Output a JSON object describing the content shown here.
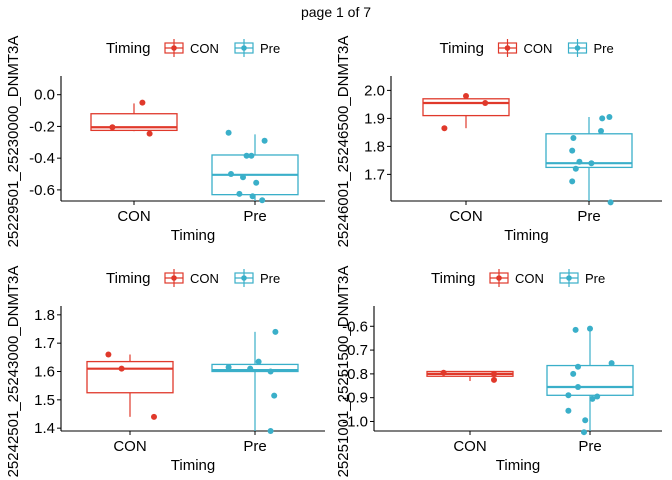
{
  "page_label": "page 1 of 7",
  "colors": {
    "CON": "#e0392b",
    "Pre": "#3aafc9",
    "axis": "#000000"
  },
  "chart_data": [
    {
      "type": "box",
      "xlabel": "Timing",
      "ylabel": "25229501_25230000_DNMT3A",
      "categories": [
        "CON",
        "Pre"
      ],
      "legend": {
        "title": "Timing",
        "entries": [
          "CON",
          "Pre"
        ],
        "position": "top"
      },
      "ylim": [
        -0.67,
        0.08
      ],
      "yticks": [
        0.0,
        -0.2,
        -0.4,
        -0.6
      ],
      "ytick_labels": [
        "0.0",
        "-0.2",
        "-0.4",
        "-0.6"
      ],
      "boxes": [
        {
          "name": "CON",
          "whisker_low": -0.23,
          "q1": -0.225,
          "median": -0.205,
          "q3": -0.12,
          "whisker_high": -0.055
        },
        {
          "name": "Pre",
          "whisker_low": -0.68,
          "q1": -0.63,
          "median": -0.505,
          "q3": -0.38,
          "whisker_high": -0.25
        }
      ],
      "points": [
        {
          "group": "CON",
          "offset": 0.07,
          "y": -0.05
        },
        {
          "group": "CON",
          "offset": -0.18,
          "y": -0.205
        },
        {
          "group": "CON",
          "offset": 0.13,
          "y": -0.245
        },
        {
          "group": "Pre",
          "offset": -0.22,
          "y": -0.24
        },
        {
          "group": "Pre",
          "offset": 0.08,
          "y": -0.29
        },
        {
          "group": "Pre",
          "offset": -0.07,
          "y": -0.385
        },
        {
          "group": "Pre",
          "offset": -0.03,
          "y": -0.385
        },
        {
          "group": "Pre",
          "offset": -0.2,
          "y": -0.5
        },
        {
          "group": "Pre",
          "offset": -0.1,
          "y": -0.52
        },
        {
          "group": "Pre",
          "offset": 0.01,
          "y": -0.555
        },
        {
          "group": "Pre",
          "offset": -0.13,
          "y": -0.625
        },
        {
          "group": "Pre",
          "offset": -0.02,
          "y": -0.64
        },
        {
          "group": "Pre",
          "offset": 0.06,
          "y": -0.665
        }
      ]
    },
    {
      "type": "box",
      "xlabel": "Timing",
      "ylabel": "25246001_25246500_DNMT3A",
      "categories": [
        "CON",
        "Pre"
      ],
      "legend": {
        "title": "Timing",
        "entries": [
          "CON",
          "Pre"
        ],
        "position": "top"
      },
      "ylim": [
        1.605,
        2.03
      ],
      "yticks": [
        2.0,
        1.9,
        1.8,
        1.7
      ],
      "ytick_labels": [
        "2.0",
        "1.9",
        "1.8",
        "1.7"
      ],
      "boxes": [
        {
          "name": "CON",
          "whisker_low": 1.865,
          "q1": 1.91,
          "median": 1.955,
          "q3": 1.97,
          "whisker_high": 1.98
        },
        {
          "name": "Pre",
          "whisker_low": 1.6,
          "q1": 1.725,
          "median": 1.74,
          "q3": 1.845,
          "whisker_high": 1.905
        }
      ],
      "points": [
        {
          "group": "CON",
          "offset": 0.0,
          "y": 1.98
        },
        {
          "group": "CON",
          "offset": -0.18,
          "y": 1.865
        },
        {
          "group": "CON",
          "offset": 0.16,
          "y": 1.955
        },
        {
          "group": "Pre",
          "offset": 0.11,
          "y": 1.9
        },
        {
          "group": "Pre",
          "offset": 0.17,
          "y": 1.905
        },
        {
          "group": "Pre",
          "offset": 0.1,
          "y": 1.855
        },
        {
          "group": "Pre",
          "offset": -0.13,
          "y": 1.83
        },
        {
          "group": "Pre",
          "offset": -0.14,
          "y": 1.785
        },
        {
          "group": "Pre",
          "offset": -0.08,
          "y": 1.745
        },
        {
          "group": "Pre",
          "offset": 0.02,
          "y": 1.74
        },
        {
          "group": "Pre",
          "offset": -0.11,
          "y": 1.72
        },
        {
          "group": "Pre",
          "offset": -0.14,
          "y": 1.675
        },
        {
          "group": "Pre",
          "offset": 0.18,
          "y": 1.6
        }
      ]
    },
    {
      "type": "box",
      "xlabel": "Timing",
      "ylabel": "25242501_25243000_DNMT3A",
      "categories": [
        "CON",
        "Pre"
      ],
      "legend": {
        "title": "Timing",
        "entries": [
          "CON",
          "Pre"
        ],
        "position": "top"
      },
      "ylim": [
        1.39,
        1.81
      ],
      "yticks": [
        1.8,
        1.7,
        1.6,
        1.5,
        1.4
      ],
      "ytick_labels": [
        "1.8",
        "1.7",
        "1.6",
        "1.5",
        "1.4"
      ],
      "boxes": [
        {
          "name": "CON",
          "whisker_low": 1.44,
          "q1": 1.525,
          "median": 1.61,
          "q3": 1.635,
          "whisker_high": 1.66
        },
        {
          "name": "Pre",
          "whisker_low": 1.39,
          "q1": 1.6,
          "median": 1.605,
          "q3": 1.625,
          "whisker_high": 1.74
        }
      ],
      "points": [
        {
          "group": "CON",
          "offset": -0.18,
          "y": 1.66
        },
        {
          "group": "CON",
          "offset": -0.07,
          "y": 1.61
        },
        {
          "group": "CON",
          "offset": 0.2,
          "y": 1.44
        },
        {
          "group": "Pre",
          "offset": 0.17,
          "y": 1.74
        },
        {
          "group": "Pre",
          "offset": 0.03,
          "y": 1.635
        },
        {
          "group": "Pre",
          "offset": -0.22,
          "y": 1.615
        },
        {
          "group": "Pre",
          "offset": -0.04,
          "y": 1.61
        },
        {
          "group": "Pre",
          "offset": 0.13,
          "y": 1.6
        },
        {
          "group": "Pre",
          "offset": 0.16,
          "y": 1.515
        },
        {
          "group": "Pre",
          "offset": 0.13,
          "y": 1.39
        }
      ]
    },
    {
      "type": "box",
      "xlabel": "Timing",
      "ylabel": "25251001_25251500_DNMT3A",
      "categories": [
        "CON",
        "Pre"
      ],
      "legend": {
        "title": "Timing",
        "entries": [
          "CON",
          "Pre"
        ],
        "position": "top"
      },
      "ylim": [
        -1.04,
        -0.54
      ],
      "yticks": [
        -0.6,
        -0.7,
        -0.8,
        -0.9,
        -1.0
      ],
      "ytick_labels": [
        "-0.6",
        "-0.7",
        "-0.8",
        "-0.9",
        "-1.0"
      ],
      "boxes": [
        {
          "name": "CON",
          "whisker_low": -0.83,
          "q1": -0.81,
          "median": -0.8,
          "q3": -0.79,
          "whisker_high": -0.79
        },
        {
          "name": "Pre",
          "whisker_low": -1.045,
          "q1": -0.89,
          "median": -0.855,
          "q3": -0.765,
          "whisker_high": -0.615
        }
      ],
      "points": [
        {
          "group": "CON",
          "offset": -0.22,
          "y": -0.795
        },
        {
          "group": "CON",
          "offset": 0.2,
          "y": -0.8
        },
        {
          "group": "CON",
          "offset": 0.2,
          "y": -0.825
        },
        {
          "group": "Pre",
          "offset": -0.12,
          "y": -0.615
        },
        {
          "group": "Pre",
          "offset": 0.0,
          "y": -0.61
        },
        {
          "group": "Pre",
          "offset": 0.18,
          "y": -0.755
        },
        {
          "group": "Pre",
          "offset": -0.1,
          "y": -0.77
        },
        {
          "group": "Pre",
          "offset": -0.14,
          "y": -0.8
        },
        {
          "group": "Pre",
          "offset": -0.1,
          "y": -0.855
        },
        {
          "group": "Pre",
          "offset": -0.18,
          "y": -0.89
        },
        {
          "group": "Pre",
          "offset": 0.06,
          "y": -0.895
        },
        {
          "group": "Pre",
          "offset": 0.02,
          "y": -0.905
        },
        {
          "group": "Pre",
          "offset": -0.18,
          "y": -0.955
        },
        {
          "group": "Pre",
          "offset": -0.04,
          "y": -0.995
        },
        {
          "group": "Pre",
          "offset": -0.05,
          "y": -1.045
        }
      ]
    }
  ]
}
